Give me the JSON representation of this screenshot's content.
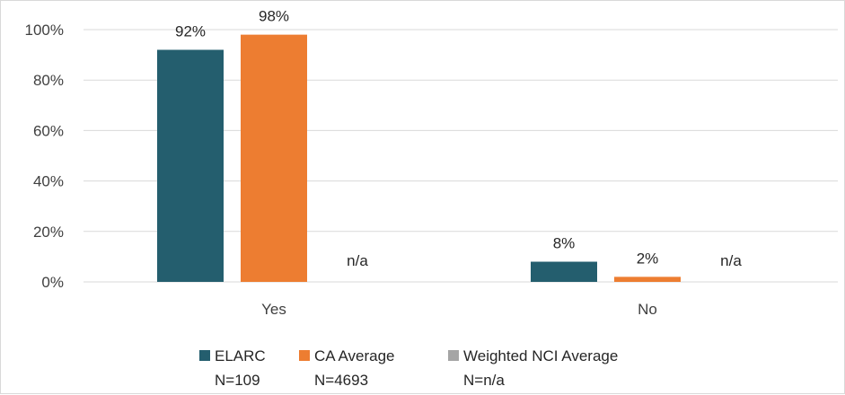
{
  "chart_data": {
    "type": "bar",
    "categories": [
      "Yes",
      "No"
    ],
    "series": [
      {
        "name": "ELARC",
        "sample": "N=109",
        "color": "#245e6e",
        "values": [
          92,
          8
        ],
        "labels": [
          "92%",
          "8%"
        ]
      },
      {
        "name": "CA Average",
        "sample": "N=4693",
        "color": "#ed7d31",
        "values": [
          98,
          2
        ],
        "labels": [
          "98%",
          "2%"
        ]
      },
      {
        "name": "Weighted NCI Average",
        "sample": "N=n/a",
        "color": "#a5a5a5",
        "values": [
          null,
          null
        ],
        "labels": [
          "n/a",
          "n/a"
        ]
      }
    ],
    "ylim": [
      0,
      100
    ],
    "yticks": [
      0,
      20,
      40,
      60,
      80,
      100
    ],
    "ytick_labels": [
      "0%",
      "20%",
      "40%",
      "60%",
      "80%",
      "100%"
    ],
    "grid": true,
    "legend_position": "bottom"
  }
}
